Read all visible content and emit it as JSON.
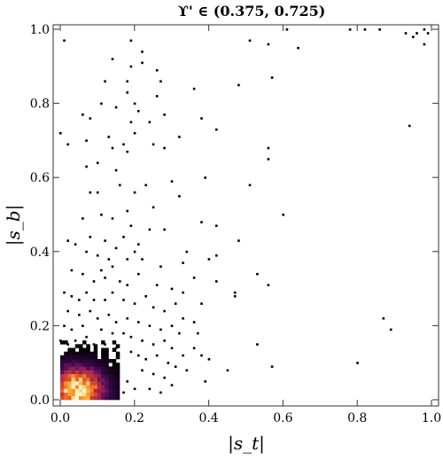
{
  "chart_data": {
    "type": "heatmap",
    "title": "ϒ' ∈ (0.375, 0.725)",
    "xlabel": "|s_t|",
    "ylabel": "|s_b|",
    "xlim": [
      0,
      1
    ],
    "ylim": [
      0,
      1
    ],
    "x_ticks": [
      "0.0",
      "0.2",
      "0.4",
      "0.6",
      "0.8",
      "1.0"
    ],
    "y_ticks": [
      "0.0",
      "0.2",
      "0.4",
      "0.6",
      "0.8",
      "1.0"
    ],
    "grid": false,
    "colormap": "black-purple-red-orange-yellow (density)",
    "density_core": {
      "x_range": [
        0.0,
        0.15
      ],
      "y_range": [
        0.0,
        0.15
      ],
      "peak": [
        0.04,
        0.02
      ]
    },
    "scatter_points": [
      [
        0.01,
        0.97
      ],
      [
        0.19,
        0.97
      ],
      [
        0.22,
        0.94
      ],
      [
        0.51,
        0.97
      ],
      [
        0.56,
        0.96
      ],
      [
        0.61,
        1.0
      ],
      [
        0.64,
        0.95
      ],
      [
        0.78,
        1.0
      ],
      [
        0.82,
        1.0
      ],
      [
        0.86,
        1.0
      ],
      [
        0.93,
        0.99
      ],
      [
        0.95,
        0.98
      ],
      [
        0.96,
        0.99
      ],
      [
        0.98,
        0.96
      ],
      [
        0.99,
        0.99
      ],
      [
        0.98,
        1.0
      ],
      [
        0.14,
        0.92
      ],
      [
        0.19,
        0.9
      ],
      [
        0.22,
        0.91
      ],
      [
        0.57,
        0.87
      ],
      [
        0.48,
        0.85
      ],
      [
        0.12,
        0.86
      ],
      [
        0.18,
        0.86
      ],
      [
        0.27,
        0.86
      ],
      [
        0.26,
        0.82
      ],
      [
        0.18,
        0.83
      ],
      [
        0.36,
        0.84
      ],
      [
        0.26,
        0.89
      ],
      [
        0.06,
        0.77
      ],
      [
        0.11,
        0.8
      ],
      [
        0.15,
        0.79
      ],
      [
        0.2,
        0.8
      ],
      [
        0.21,
        0.78
      ],
      [
        0.19,
        0.75
      ],
      [
        0.24,
        0.75
      ],
      [
        0.28,
        0.77
      ],
      [
        0.38,
        0.76
      ],
      [
        0.08,
        0.76
      ],
      [
        0.2,
        0.72
      ],
      [
        0.14,
        0.68
      ],
      [
        0.25,
        0.69
      ],
      [
        0.17,
        0.69
      ],
      [
        0.0,
        0.72
      ],
      [
        0.02,
        0.69
      ],
      [
        0.07,
        0.7
      ],
      [
        0.13,
        0.71
      ],
      [
        0.18,
        0.67
      ],
      [
        0.28,
        0.68
      ],
      [
        0.42,
        0.73
      ],
      [
        0.32,
        0.71
      ],
      [
        0.56,
        0.68
      ],
      [
        0.56,
        0.65
      ],
      [
        0.94,
        0.74
      ],
      [
        0.07,
        0.63
      ],
      [
        0.1,
        0.64
      ],
      [
        0.16,
        0.58
      ],
      [
        0.15,
        0.62
      ],
      [
        0.08,
        0.56
      ],
      [
        0.1,
        0.56
      ],
      [
        0.2,
        0.56
      ],
      [
        0.23,
        0.58
      ],
      [
        0.25,
        0.52
      ],
      [
        0.32,
        0.55
      ],
      [
        0.3,
        0.59
      ],
      [
        0.39,
        0.6
      ],
      [
        0.51,
        0.58
      ],
      [
        0.6,
        0.5
      ],
      [
        0.06,
        0.49
      ],
      [
        0.11,
        0.5
      ],
      [
        0.14,
        0.49
      ],
      [
        0.18,
        0.51
      ],
      [
        0.19,
        0.47
      ],
      [
        0.17,
        0.44
      ],
      [
        0.21,
        0.42
      ],
      [
        0.24,
        0.46
      ],
      [
        0.28,
        0.46
      ],
      [
        0.38,
        0.48
      ],
      [
        0.42,
        0.47
      ],
      [
        0.42,
        0.39
      ],
      [
        0.02,
        0.43
      ],
      [
        0.04,
        0.42
      ],
      [
        0.07,
        0.4
      ],
      [
        0.08,
        0.44
      ],
      [
        0.12,
        0.43
      ],
      [
        0.1,
        0.39
      ],
      [
        0.15,
        0.41
      ],
      [
        0.13,
        0.38
      ],
      [
        0.14,
        0.36
      ],
      [
        0.18,
        0.38
      ],
      [
        0.2,
        0.4
      ],
      [
        0.22,
        0.38
      ],
      [
        0.27,
        0.36
      ],
      [
        0.33,
        0.37
      ],
      [
        0.34,
        0.4
      ],
      [
        0.4,
        0.38
      ],
      [
        0.03,
        0.35
      ],
      [
        0.06,
        0.34
      ],
      [
        0.09,
        0.32
      ],
      [
        0.11,
        0.35
      ],
      [
        0.12,
        0.33
      ],
      [
        0.16,
        0.32
      ],
      [
        0.18,
        0.31
      ],
      [
        0.21,
        0.34
      ],
      [
        0.26,
        0.31
      ],
      [
        0.3,
        0.3
      ],
      [
        0.36,
        0.33
      ],
      [
        0.33,
        0.29
      ],
      [
        0.47,
        0.29
      ],
      [
        0.53,
        0.34
      ],
      [
        0.56,
        0.31
      ],
      [
        0.42,
        0.32
      ],
      [
        0.01,
        0.29
      ],
      [
        0.03,
        0.28
      ],
      [
        0.05,
        0.27
      ],
      [
        0.07,
        0.29
      ],
      [
        0.09,
        0.27
      ],
      [
        0.12,
        0.27
      ],
      [
        0.14,
        0.29
      ],
      [
        0.17,
        0.27
      ],
      [
        0.2,
        0.26
      ],
      [
        0.23,
        0.28
      ],
      [
        0.25,
        0.25
      ],
      [
        0.28,
        0.24
      ],
      [
        0.31,
        0.26
      ],
      [
        0.38,
        0.26
      ],
      [
        0.33,
        0.22
      ],
      [
        0.02,
        0.24
      ],
      [
        0.05,
        0.23
      ],
      [
        0.08,
        0.24
      ],
      [
        0.1,
        0.22
      ],
      [
        0.13,
        0.23
      ],
      [
        0.15,
        0.21
      ],
      [
        0.18,
        0.22
      ],
      [
        0.21,
        0.21
      ],
      [
        0.24,
        0.2
      ],
      [
        0.27,
        0.19
      ],
      [
        0.3,
        0.2
      ],
      [
        0.32,
        0.18
      ],
      [
        0.36,
        0.21
      ],
      [
        0.37,
        0.18
      ],
      [
        0.01,
        0.2
      ],
      [
        0.03,
        0.19
      ],
      [
        0.06,
        0.2
      ],
      [
        0.11,
        0.19
      ],
      [
        0.14,
        0.18
      ],
      [
        0.17,
        0.18
      ],
      [
        0.19,
        0.17
      ],
      [
        0.22,
        0.16
      ],
      [
        0.25,
        0.15
      ],
      [
        0.28,
        0.16
      ],
      [
        0.3,
        0.14
      ],
      [
        0.33,
        0.12
      ],
      [
        0.36,
        0.14
      ],
      [
        0.38,
        0.12
      ],
      [
        0.4,
        0.11
      ],
      [
        0.53,
        0.15
      ],
      [
        0.57,
        0.09
      ],
      [
        0.8,
        0.1
      ],
      [
        0.87,
        0.22
      ],
      [
        0.89,
        0.19
      ],
      [
        0.0,
        0.16
      ],
      [
        0.02,
        0.15
      ],
      [
        0.04,
        0.16
      ],
      [
        0.07,
        0.17
      ],
      [
        0.09,
        0.15
      ],
      [
        0.12,
        0.15
      ],
      [
        0.15,
        0.14
      ],
      [
        0.19,
        0.13
      ],
      [
        0.21,
        0.12
      ],
      [
        0.23,
        0.11
      ],
      [
        0.26,
        0.12
      ],
      [
        0.29,
        0.1
      ],
      [
        0.31,
        0.09
      ],
      [
        0.34,
        0.08
      ],
      [
        0.22,
        0.08
      ],
      [
        0.25,
        0.07
      ],
      [
        0.28,
        0.06
      ],
      [
        0.18,
        0.05
      ],
      [
        0.2,
        0.03
      ],
      [
        0.24,
        0.03
      ],
      [
        0.27,
        0.02
      ],
      [
        0.17,
        0.02
      ],
      [
        0.15,
        0.07
      ],
      [
        0.3,
        0.04
      ],
      [
        0.39,
        0.05
      ],
      [
        0.45,
        0.08
      ],
      [
        0.47,
        0.28
      ],
      [
        0.48,
        0.43
      ]
    ]
  }
}
